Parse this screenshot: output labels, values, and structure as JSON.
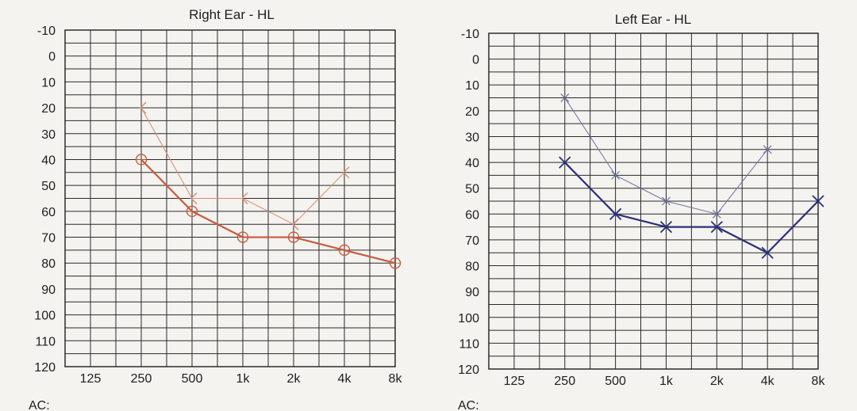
{
  "colors": {
    "right": "#c95a3e",
    "right_bone": "#d88a72",
    "left": "#2c2f7a",
    "left_bone": "#6e70a0",
    "grid": "#2a2a2a",
    "paper": "#f4f3ef"
  },
  "footer": {
    "right_label": "AC:",
    "left_label": "AC:"
  },
  "chart_data": [
    {
      "type": "line",
      "title": "Right Ear - HL",
      "xlabel": "",
      "ylabel": "",
      "categories": [
        "125",
        "250",
        "500",
        "1k",
        "2k",
        "4k",
        "8k"
      ],
      "yticks": [
        "-10",
        "0",
        "10",
        "20",
        "30",
        "40",
        "50",
        "60",
        "70",
        "80",
        "90",
        "100",
        "110",
        "120"
      ],
      "ylim": [
        -10,
        120
      ],
      "y_inverted": true,
      "grid": true,
      "series": [
        {
          "symbol": "circle",
          "style": "air",
          "color": "#c95a3e",
          "x": [
            "250",
            "500",
            "1k",
            "2k",
            "4k",
            "8k"
          ],
          "values": [
            40,
            60,
            70,
            70,
            75,
            80
          ]
        },
        {
          "symbol": "bracket-left",
          "style": "bone",
          "color": "#d88a72",
          "x": [
            "250",
            "500",
            "1k",
            "2k",
            "4k"
          ],
          "values": [
            20,
            55,
            55,
            65,
            45
          ]
        }
      ]
    },
    {
      "type": "line",
      "title": "Left Ear - HL",
      "xlabel": "",
      "ylabel": "",
      "categories": [
        "125",
        "250",
        "500",
        "1k",
        "2k",
        "4k",
        "8k"
      ],
      "yticks": [
        "-10",
        "0",
        "10",
        "20",
        "30",
        "40",
        "50",
        "60",
        "70",
        "80",
        "90",
        "100",
        "110",
        "120"
      ],
      "ylim": [
        -10,
        120
      ],
      "y_inverted": true,
      "grid": true,
      "series": [
        {
          "symbol": "cross",
          "style": "air",
          "color": "#2c2f7a",
          "x": [
            "250",
            "500",
            "1k",
            "2k",
            "4k",
            "8k"
          ],
          "values": [
            40,
            60,
            65,
            65,
            75,
            55
          ]
        },
        {
          "symbol": "cross-small",
          "style": "bone",
          "color": "#6e70a0",
          "x": [
            "250",
            "500",
            "1k",
            "2k",
            "4k"
          ],
          "values": [
            15,
            45,
            55,
            60,
            35
          ]
        }
      ]
    }
  ]
}
